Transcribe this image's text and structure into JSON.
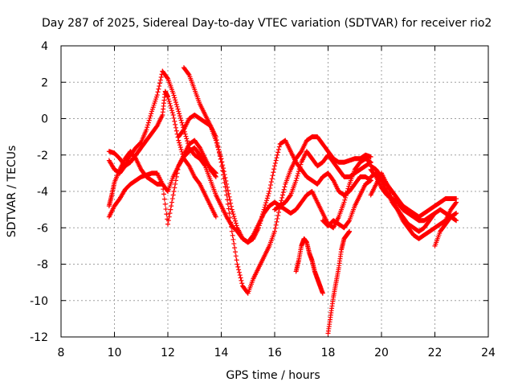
{
  "chart_data": {
    "type": "scatter",
    "title": "Day 287 of 2025, Sidereal Day-to-day VTEC variation (SDTVAR) for receiver rio2",
    "xlabel": "GPS time / hours",
    "ylabel": "SDTVAR / TECUs",
    "xlim": [
      8,
      24
    ],
    "ylim": [
      -12,
      4
    ],
    "xticks": [
      "8",
      "10",
      "12",
      "14",
      "16",
      "18",
      "20",
      "22",
      "24"
    ],
    "yticks": [
      "4",
      "2",
      "0",
      "-2",
      "-4",
      "-6",
      "-8",
      "-10",
      "-12"
    ],
    "grid": true,
    "marker": "plus",
    "color": "#ff0000",
    "series": [
      {
        "x": [
          9.8,
          10.0,
          10.2,
          10.4,
          10.6,
          10.8,
          11.0,
          11.2,
          11.4,
          11.6,
          11.8,
          11.9,
          12.0,
          12.2,
          12.4,
          12.6,
          12.8,
          13.0,
          13.2,
          13.4,
          13.6,
          13.8
        ],
        "y": [
          -1.8,
          -1.9,
          -2.2,
          -2.6,
          -2.4,
          -2.0,
          -1.6,
          -1.2,
          -0.8,
          -0.4,
          0.2,
          1.5,
          1.2,
          0.2,
          -1.2,
          -2.2,
          -2.6,
          -3.2,
          -3.6,
          -4.2,
          -4.8,
          -5.4
        ]
      },
      {
        "x": [
          9.8,
          9.9,
          10.0,
          10.2,
          10.4,
          10.6,
          10.8,
          11.0,
          11.2,
          11.4,
          11.6,
          11.8,
          12.0,
          12.2,
          12.4,
          12.6,
          12.8,
          13.0,
          13.2,
          13.4,
          13.6,
          13.8
        ],
        "y": [
          -4.8,
          -4.2,
          -3.5,
          -2.8,
          -2.2,
          -1.8,
          -2.2,
          -2.8,
          -3.2,
          -3.4,
          -3.6,
          -3.6,
          -4.0,
          -3.2,
          -2.6,
          -2.1,
          -1.8,
          -1.6,
          -2.0,
          -2.4,
          -2.7,
          -3.0
        ]
      },
      {
        "x": [
          9.8,
          10.0,
          10.2,
          10.4,
          10.6,
          10.8,
          11.0,
          11.2,
          11.4,
          11.6,
          11.8,
          12.0,
          12.2,
          12.4,
          12.6,
          12.8,
          13.0,
          13.2,
          13.4,
          13.6,
          13.8
        ],
        "y": [
          -5.4,
          -4.8,
          -4.4,
          -3.9,
          -3.6,
          -3.4,
          -3.2,
          -3.1,
          -3.0,
          -3.0,
          -3.6,
          -5.8,
          -4.2,
          -2.6,
          -2.0,
          -1.4,
          -1.2,
          -1.6,
          -2.2,
          -2.8,
          -3.2
        ]
      },
      {
        "x": [
          9.8,
          10.0,
          10.2,
          10.4,
          10.6,
          10.8,
          11.0,
          11.2,
          11.4,
          11.6,
          11.8
        ],
        "y": [
          -2.3,
          -2.8,
          -3.0,
          -2.6,
          -2.0,
          -1.6,
          -1.3,
          -0.6,
          0.4,
          1.3,
          2.6
        ]
      },
      {
        "x": [
          11.8,
          12.0,
          12.2,
          12.4,
          12.6,
          12.8,
          13.0,
          13.2,
          13.4,
          13.6,
          13.8,
          14.0,
          14.2,
          14.4,
          14.6,
          14.8,
          15.0,
          15.2,
          15.4,
          15.6,
          15.8,
          16.0,
          16.2,
          16.4,
          16.6,
          16.8,
          17.0,
          17.2,
          17.4,
          17.6,
          17.8,
          18.0,
          18.2,
          18.4,
          18.6,
          18.8,
          19.0,
          19.2,
          19.4,
          19.6
        ],
        "y": [
          2.6,
          2.2,
          1.4,
          0.4,
          -0.6,
          -1.6,
          -2.0,
          -2.2,
          -2.6,
          -3.4,
          -4.2,
          -4.8,
          -5.4,
          -5.9,
          -6.2,
          -6.6,
          -6.8,
          -6.4,
          -5.8,
          -5.2,
          -4.8,
          -4.6,
          -4.8,
          -5.0,
          -5.2,
          -5.0,
          -4.6,
          -4.2,
          -4.0,
          -4.6,
          -5.2,
          -5.8,
          -6.0,
          -5.4,
          -4.6,
          -3.6,
          -2.8,
          -2.4,
          -2.2,
          -2.4
        ]
      },
      {
        "x": [
          12.6,
          12.8,
          13.0,
          13.2,
          13.4,
          13.6,
          13.8,
          14.0,
          14.2,
          14.4,
          14.6,
          14.8,
          15.0,
          15.2,
          15.4,
          15.6,
          15.8,
          16.0,
          16.2,
          16.4,
          16.6,
          16.8,
          17.0,
          17.2,
          17.4,
          17.6,
          17.8,
          18.0,
          18.2,
          18.4,
          18.6,
          18.8,
          19.0,
          19.2,
          19.4,
          19.6
        ],
        "y": [
          2.8,
          2.4,
          1.6,
          0.8,
          0.2,
          -0.4,
          -1.0,
          -2.4,
          -4.2,
          -6.2,
          -8.0,
          -9.2,
          -9.6,
          -8.8,
          -8.2,
          -7.6,
          -7.0,
          -6.2,
          -4.8,
          -3.6,
          -2.8,
          -2.2,
          -1.8,
          -1.2,
          -1.0,
          -1.0,
          -1.4,
          -1.8,
          -2.2,
          -2.4,
          -2.4,
          -2.3,
          -2.2,
          -2.2,
          -2.0,
          -2.1
        ]
      },
      {
        "x": [
          12.4,
          12.6,
          12.8,
          13.0,
          13.2,
          13.4,
          13.6,
          13.8,
          14.0,
          14.2,
          14.4,
          14.6,
          14.8,
          15.0,
          15.2,
          15.4,
          15.6,
          15.8,
          16.0,
          16.2,
          16.4,
          16.6,
          16.8,
          17.0,
          17.2,
          17.4,
          17.6,
          17.8,
          18.0,
          18.2,
          18.4,
          18.6,
          18.8,
          19.0,
          19.2,
          19.4,
          19.6
        ],
        "y": [
          -1.0,
          -0.6,
          0.0,
          0.2,
          0.0,
          -0.2,
          -0.4,
          -1.2,
          -2.2,
          -3.6,
          -5.0,
          -6.0,
          -6.6,
          -6.8,
          -6.6,
          -6.0,
          -5.0,
          -4.0,
          -2.6,
          -1.4,
          -1.2,
          -1.8,
          -2.4,
          -2.8,
          -3.2,
          -3.4,
          -3.6,
          -3.2,
          -3.0,
          -3.4,
          -4.0,
          -4.2,
          -4.0,
          -3.6,
          -3.2,
          -3.2,
          -3.4
        ]
      },
      {
        "x": [
          16.0,
          16.2,
          16.4,
          16.6,
          16.8,
          17.0,
          17.2,
          17.4,
          17.6,
          17.8,
          18.0,
          18.2,
          18.4,
          18.6,
          18.8,
          19.0,
          19.2,
          19.4,
          19.6
        ],
        "y": [
          -5.0,
          -4.8,
          -4.6,
          -4.2,
          -3.4,
          -2.4,
          -1.8,
          -2.2,
          -2.6,
          -2.4,
          -2.0,
          -2.4,
          -2.8,
          -3.2,
          -3.2,
          -3.0,
          -2.8,
          -2.6,
          -2.4
        ]
      },
      {
        "x": [
          17.8,
          18.0,
          18.2,
          18.4,
          18.6,
          18.8,
          19.0,
          19.2,
          19.4,
          19.6
        ],
        "y": [
          -5.6,
          -5.9,
          -5.6,
          -5.8,
          -6.0,
          -5.6,
          -4.8,
          -4.2,
          -3.6,
          -3.4
        ]
      },
      {
        "x": [
          18.0,
          18.1,
          18.2,
          18.3,
          18.4,
          18.5,
          18.6,
          18.7,
          18.8
        ],
        "y": [
          -11.8,
          -10.8,
          -9.8,
          -9.0,
          -8.2,
          -7.2,
          -6.6,
          -6.4,
          -6.2
        ]
      },
      {
        "x": [
          16.8,
          16.9,
          17.0,
          17.1,
          17.2,
          17.3,
          17.4,
          17.5,
          17.6,
          17.7,
          17.8
        ],
        "y": [
          -8.4,
          -7.8,
          -7.0,
          -6.6,
          -6.8,
          -7.4,
          -7.8,
          -8.4,
          -8.8,
          -9.2,
          -9.6
        ]
      },
      {
        "x": [
          19.6,
          19.8,
          20.0,
          20.2,
          20.4,
          20.6,
          20.8,
          21.0,
          21.2,
          21.4,
          21.6,
          21.8,
          22.0,
          22.2,
          22.4,
          22.6,
          22.8
        ],
        "y": [
          -2.6,
          -2.8,
          -3.2,
          -3.6,
          -4.0,
          -4.4,
          -4.8,
          -5.0,
          -5.2,
          -5.4,
          -5.2,
          -5.0,
          -4.8,
          -4.6,
          -4.4,
          -4.4,
          -4.4
        ]
      },
      {
        "x": [
          19.6,
          19.8,
          20.0,
          20.2,
          20.4,
          20.6,
          20.8,
          21.0,
          21.2,
          21.4,
          21.6,
          21.8,
          22.0,
          22.2,
          22.4,
          22.6,
          22.8
        ],
        "y": [
          -3.2,
          -3.0,
          -3.4,
          -4.0,
          -4.6,
          -5.0,
          -5.4,
          -5.8,
          -6.0,
          -6.2,
          -6.0,
          -5.6,
          -5.2,
          -5.0,
          -5.2,
          -5.4,
          -5.6
        ]
      },
      {
        "x": [
          19.6,
          19.8,
          20.0,
          20.2,
          20.4,
          20.6,
          20.8,
          21.0,
          21.2,
          21.4,
          21.6,
          21.8,
          22.0,
          22.2,
          22.4,
          22.6,
          22.8
        ],
        "y": [
          -4.2,
          -3.6,
          -3.0,
          -3.6,
          -4.4,
          -5.0,
          -5.6,
          -6.0,
          -6.4,
          -6.6,
          -6.4,
          -6.2,
          -6.0,
          -5.8,
          -5.6,
          -5.0,
          -4.6
        ]
      },
      {
        "x": [
          19.6,
          19.8,
          20.0,
          20.2,
          20.4,
          20.6,
          20.8,
          21.0,
          21.2,
          21.4,
          21.6,
          21.8,
          22.0
        ],
        "y": [
          -2.8,
          -3.2,
          -3.8,
          -4.2,
          -4.4,
          -4.6,
          -5.0,
          -5.2,
          -5.4,
          -5.6,
          -5.6,
          -5.4,
          -5.2
        ]
      },
      {
        "x": [
          22.0,
          22.2,
          22.4,
          22.6,
          22.8
        ],
        "y": [
          -7.0,
          -6.2,
          -5.8,
          -5.4,
          -5.2
        ]
      }
    ]
  }
}
